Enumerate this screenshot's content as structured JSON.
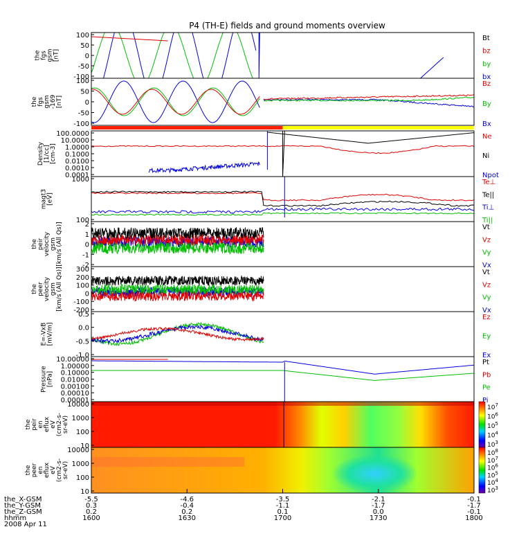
{
  "title": "P4 (TH-E) fields and ground moments overview",
  "colors": {
    "black": "#000000",
    "red": "#e00000",
    "green": "#00c000",
    "blue": "#0000e0",
    "yellow": "#ffff00"
  },
  "chart_data": {
    "type": "line",
    "time_axis": {
      "range": [
        "16:00",
        "18:00"
      ],
      "ticks": [
        "1600",
        "1630",
        "1700",
        "1730",
        "1800"
      ],
      "rows": [
        {
          "label": "the_X-GSM",
          "values": [
            "-5.5",
            "-4.6",
            "-3.5",
            "-2.1",
            "-0.1"
          ]
        },
        {
          "label": "the_Y-GSM",
          "values": [
            "0.3",
            "-0.4",
            "-1.1",
            "-1.7",
            "-1.7"
          ]
        },
        {
          "label": "the_Z-GSM",
          "values": [
            "0.2",
            "0.2",
            "0.1",
            "0.0",
            "-0.1"
          ]
        },
        {
          "label": "hhmm",
          "values": [
            "1600",
            "1630",
            "1700",
            "1730",
            "1800"
          ]
        }
      ],
      "date": "2008 Apr 11"
    },
    "mode_bar": {
      "segments": [
        {
          "color": "red",
          "until": "17:00"
        },
        {
          "color": "yellow",
          "until": "18:00"
        }
      ]
    },
    "panels": [
      {
        "id": "fgs",
        "ylabel": [
          "the",
          "fgs",
          "gsm",
          "[nT]"
        ],
        "ylim": [
          -100,
          100
        ],
        "ticks": [
          "100",
          "50",
          "0",
          "-50",
          "-100"
        ],
        "legend": [
          {
            "name": "Bt",
            "color": "black"
          },
          {
            "name": "bz",
            "color": "red"
          },
          {
            "name": "by",
            "color": "green"
          },
          {
            "name": "bx",
            "color": "blue"
          }
        ]
      },
      {
        "id": "fgs2",
        "ylabel": [
          "the",
          "fgs",
          "gsm",
          "-169",
          "[nT]"
        ],
        "ylim": [
          -100,
          100
        ],
        "ticks": [
          "100",
          "50",
          "0",
          "-50",
          "-100"
        ],
        "legend": [
          {
            "name": "Bz",
            "color": "red"
          },
          {
            "name": "By",
            "color": "green"
          },
          {
            "name": "Bx",
            "color": "blue"
          }
        ]
      },
      {
        "id": "density",
        "ylabel": [
          "Density",
          "[1/cc]",
          "[cm^-3]"
        ],
        "scale": "log",
        "ticks": [
          "100.0000",
          "10.0000",
          "1.0000",
          "0.1000",
          "0.0100",
          "0.0010",
          "0.0001"
        ],
        "legend": [
          {
            "name": "Ne",
            "color": "red"
          },
          {
            "name": "Ni",
            "color": "black"
          },
          {
            "name": "Npot",
            "color": "blue"
          }
        ]
      },
      {
        "id": "temp",
        "ylabel": [
          "magt3",
          "[eV]"
        ],
        "scale": "log",
        "ticks": [
          "1000",
          "100"
        ],
        "legend": [
          {
            "name": "Te⊥",
            "color": "red"
          },
          {
            "name": "Te||",
            "color": "black"
          },
          {
            "name": "Ti⊥",
            "color": "blue"
          },
          {
            "name": "Ti||",
            "color": "green"
          }
        ]
      },
      {
        "id": "veli",
        "ylabel": [
          "the",
          "peir",
          "velocity",
          "gsm",
          "[km/s (All Qs)]"
        ],
        "ylim": [
          -2,
          2
        ],
        "ticks": [
          "2",
          "1",
          "0",
          "-1",
          "-2"
        ],
        "legend": [
          {
            "name": "Vt",
            "color": "black"
          },
          {
            "name": "Vz",
            "color": "red"
          },
          {
            "name": "Vy",
            "color": "green"
          },
          {
            "name": "Vx",
            "color": "blue"
          }
        ]
      },
      {
        "id": "vele",
        "ylabel": [
          "the",
          "peer",
          "velocity",
          "gsm",
          "[km/s (All Qs)]"
        ],
        "ylim": [
          -200,
          300
        ],
        "ticks": [
          "300",
          "200",
          "100",
          "0",
          "-100",
          "-200"
        ],
        "legend": [
          {
            "name": "Vt",
            "color": "black"
          },
          {
            "name": "Vz",
            "color": "red"
          },
          {
            "name": "Vy",
            "color": "green"
          },
          {
            "name": "Vx",
            "color": "blue"
          }
        ]
      },
      {
        "id": "efield",
        "ylabel": [
          "E=-VxB",
          "[mV/m]"
        ],
        "ylim": [
          -1,
          1
        ],
        "ticks": [
          "0.5",
          "0.0",
          "-0.5",
          "-1.0"
        ],
        "legend": [
          {
            "name": "Ez",
            "color": "red"
          },
          {
            "name": "Ey",
            "color": "green"
          },
          {
            "name": "Ex",
            "color": "blue"
          }
        ]
      },
      {
        "id": "pressure",
        "ylabel": [
          "Pressure",
          "[nPa]"
        ],
        "scale": "log",
        "ticks": [
          "10.00000",
          "1.00000",
          "0.10000",
          "0.01000",
          "0.00100",
          "0.00010",
          "0.00001"
        ],
        "legend": [
          {
            "name": "Pt",
            "color": "black"
          },
          {
            "name": "Pb",
            "color": "red"
          },
          {
            "name": "Pe",
            "color": "green"
          },
          {
            "name": "Pi",
            "color": "blue"
          }
        ]
      },
      {
        "id": "ion_spec",
        "type": "heatmap",
        "ylabel": [
          "the",
          "peir",
          "en",
          "eflux",
          "eV",
          "(cm^2-s-",
          "sr-eV)"
        ],
        "ticks": [
          "10000",
          "1000",
          "100",
          "10"
        ],
        "colorbar": [
          "10^7",
          "10^6",
          "10^5",
          "10^4",
          "10^3"
        ]
      },
      {
        "id": "elec_spec",
        "type": "heatmap",
        "ylabel": [
          "the",
          "peer",
          "en",
          "eflux",
          "eV",
          "(cm^2-s-",
          "sr-eV)"
        ],
        "ticks": [
          "10000",
          "1000",
          "100",
          "10"
        ],
        "colorbar": [
          "10^8",
          "10^7",
          "10^6",
          "10^5",
          "10^4",
          "10^3"
        ]
      }
    ]
  }
}
